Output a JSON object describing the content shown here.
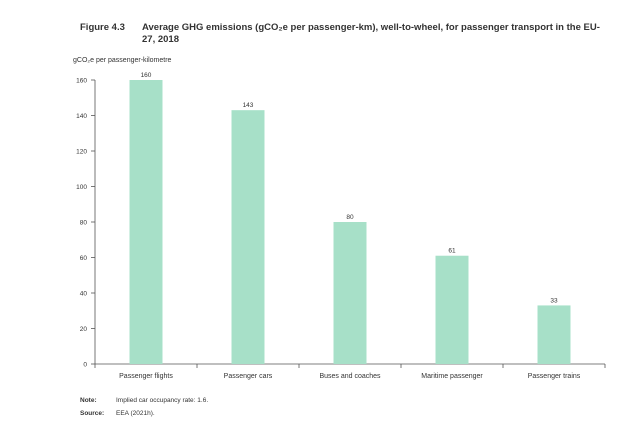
{
  "figure": {
    "label": "Figure 4.3",
    "title": "Average GHG emissions (gCO₂e per passenger-km), well-to-wheel, for passenger transport in the EU-27, 2018"
  },
  "chart_data": {
    "type": "bar",
    "title": "Average GHG emissions (gCO₂e per passenger-km), well-to-wheel, for passenger transport in the EU-27, 2018",
    "ylabel": "gCO₂e per passenger-kilometre",
    "xlabel": "",
    "categories": [
      "Passenger flights",
      "Passenger cars",
      "Buses and coaches",
      "Maritime passenger",
      "Passenger trains"
    ],
    "values": [
      160,
      143,
      80,
      61,
      33
    ],
    "value_labels": [
      "160",
      "143",
      "80",
      "61",
      "33"
    ],
    "ylim": [
      0,
      160
    ],
    "yticks": [
      0,
      20,
      40,
      60,
      80,
      100,
      120,
      140,
      160
    ],
    "ytick_labels": [
      "0",
      "20",
      "40",
      "60",
      "80",
      "100",
      "120",
      "140",
      "160"
    ],
    "bar_color": "#a7e0c8",
    "grid": false
  },
  "notes": {
    "note_key": "Note:",
    "note_text": "Implied car occupancy rate: 1.6.",
    "source_key": "Source:",
    "source_text": "EEA (2021h)."
  }
}
